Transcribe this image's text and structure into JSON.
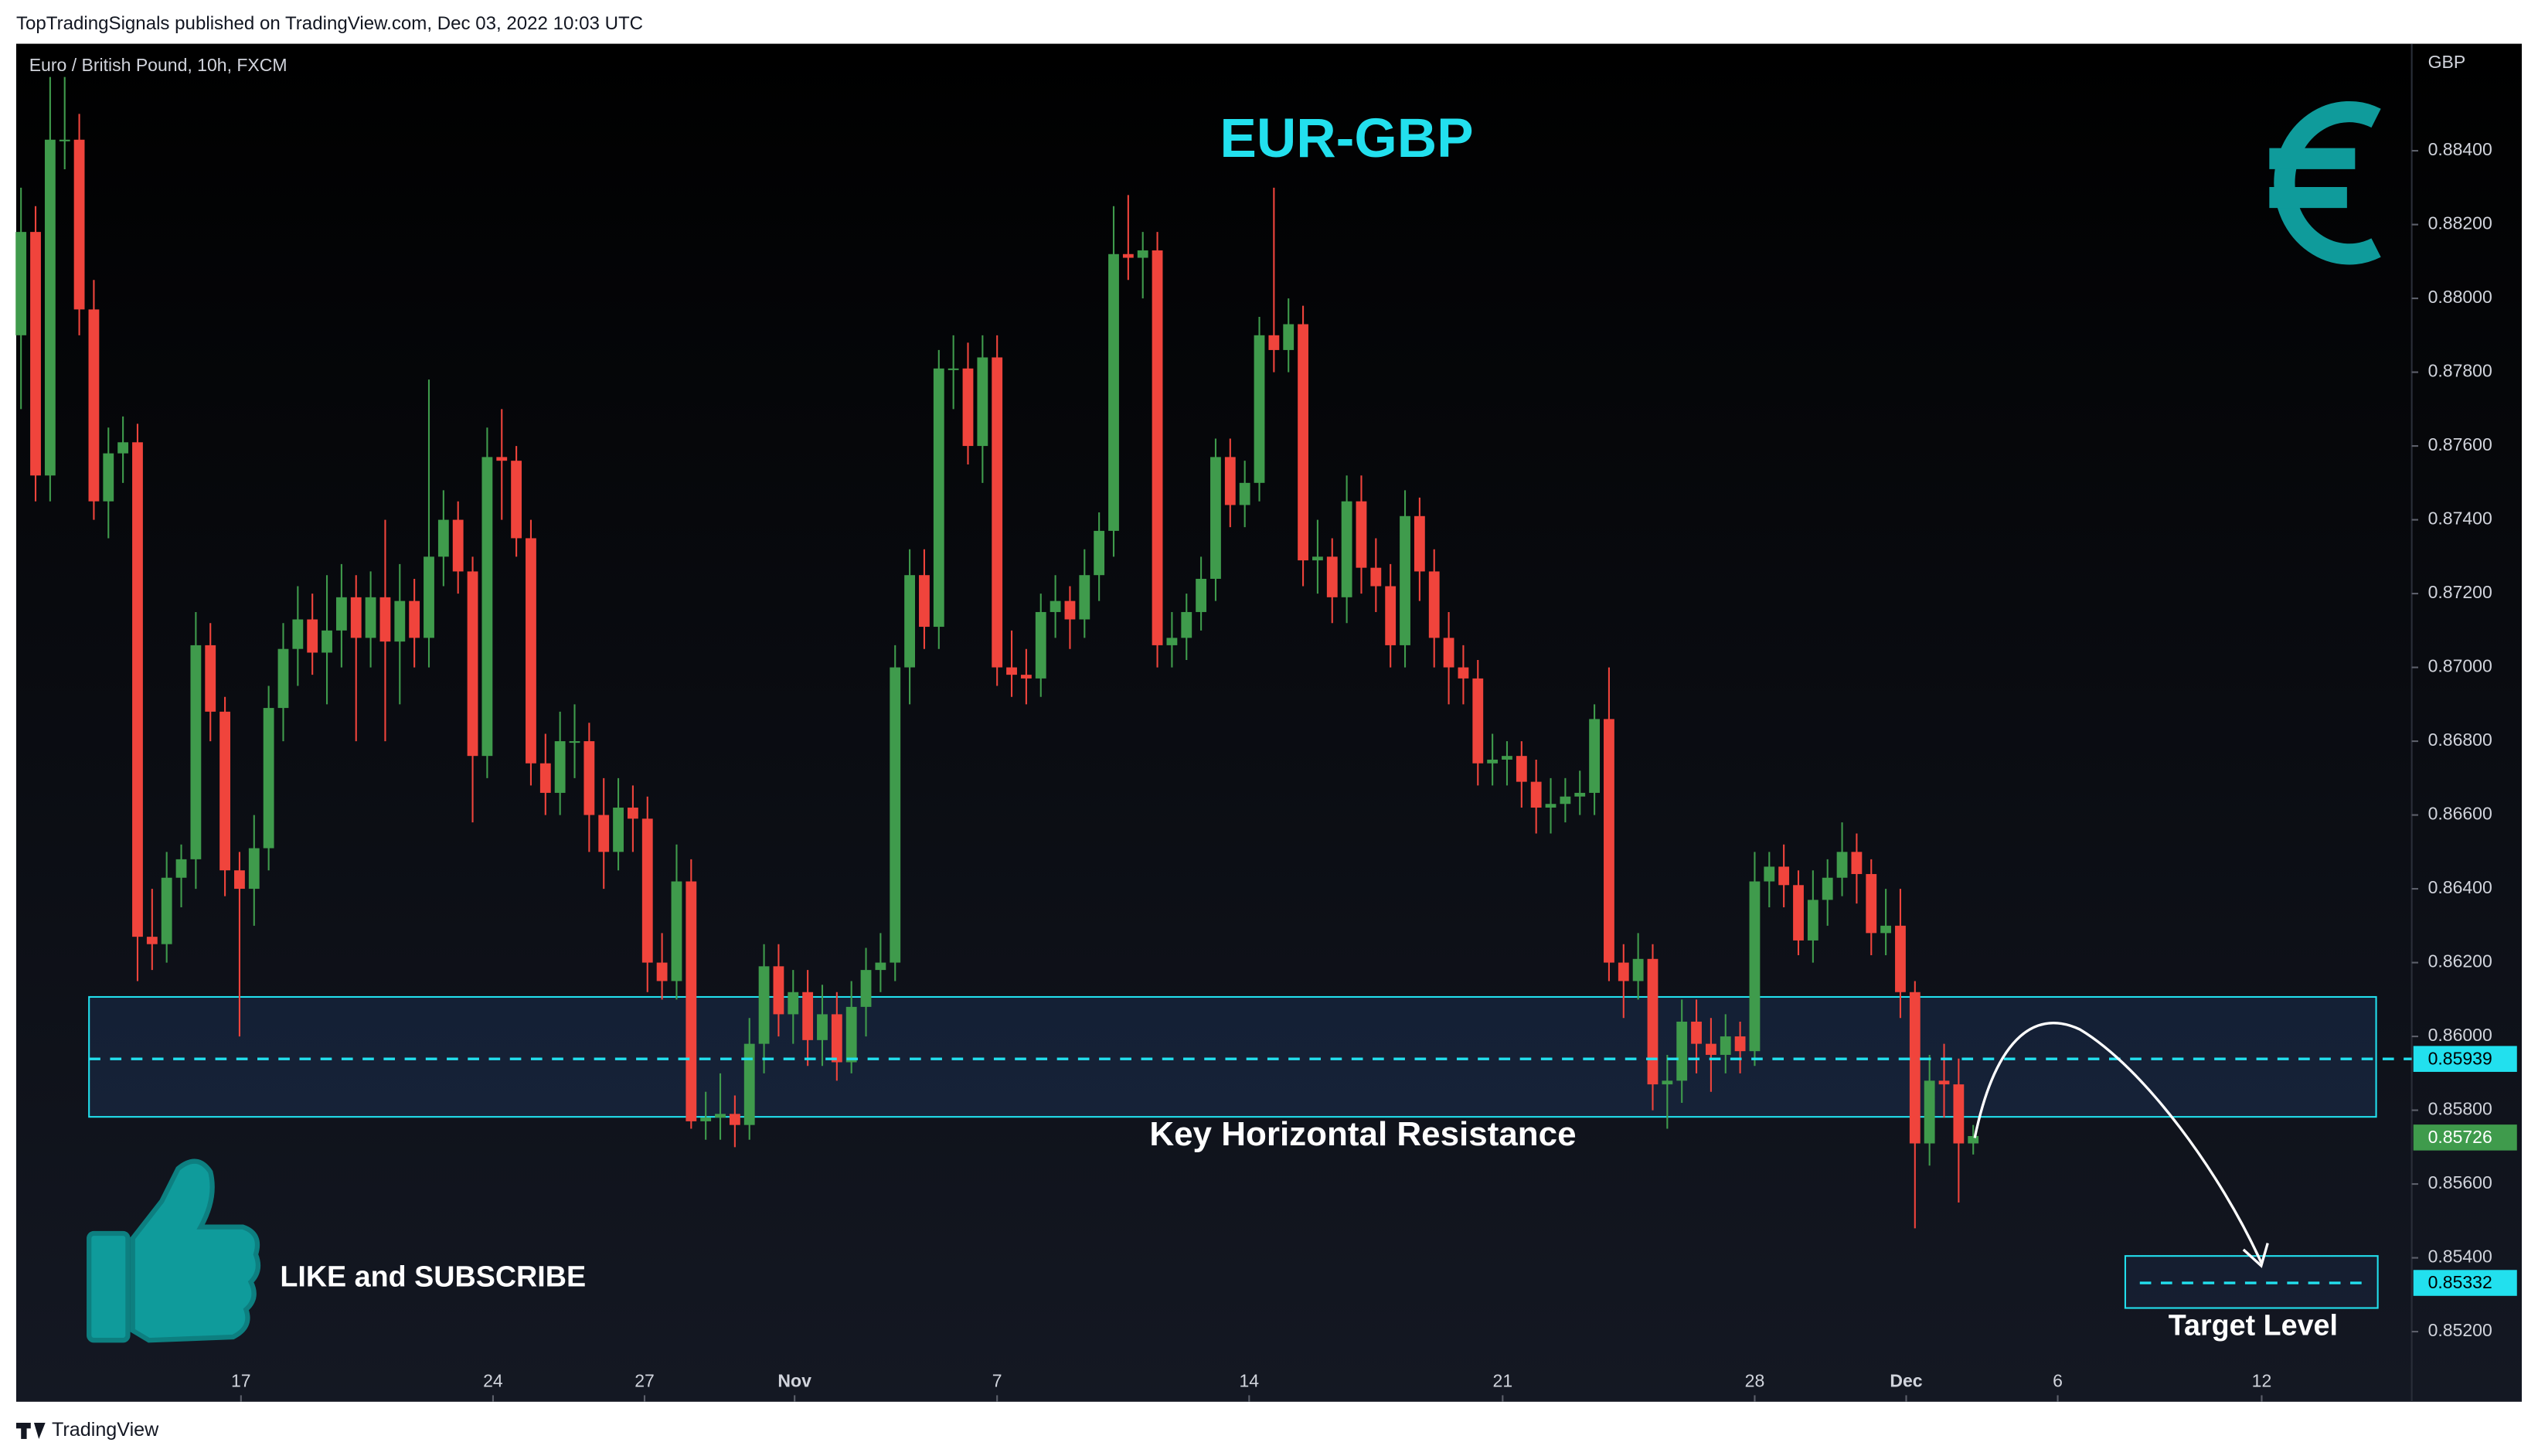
{
  "header": "TopTradingSignals published on TradingView.com, Dec 03, 2022 10:03 UTC",
  "footer": "TradingView",
  "chart_data": {
    "type": "candlestick",
    "title": "EUR-GBP",
    "subtitle": "Euro / British Pound, 10h, FXCM",
    "y_axis_label": "GBP",
    "up_color": "#3f9b4c",
    "down_color": "#f0443c",
    "accent_color": "#22e0ee",
    "ylim": [
      0.8501,
      0.8869
    ],
    "yticks": [
      {
        "value": 0.852,
        "label": "0.85200"
      },
      {
        "value": 0.854,
        "label": "0.85400"
      },
      {
        "value": 0.856,
        "label": "0.85600"
      },
      {
        "value": 0.858,
        "label": "0.85800"
      },
      {
        "value": 0.86,
        "label": "0.86000"
      },
      {
        "value": 0.862,
        "label": "0.86200"
      },
      {
        "value": 0.864,
        "label": "0.86400"
      },
      {
        "value": 0.866,
        "label": "0.86600"
      },
      {
        "value": 0.868,
        "label": "0.86800"
      },
      {
        "value": 0.87,
        "label": "0.87000"
      },
      {
        "value": 0.872,
        "label": "0.87200"
      },
      {
        "value": 0.874,
        "label": "0.87400"
      },
      {
        "value": 0.876,
        "label": "0.87600"
      },
      {
        "value": 0.878,
        "label": "0.87800"
      },
      {
        "value": 0.88,
        "label": "0.88000"
      },
      {
        "value": 0.882,
        "label": "0.88200"
      },
      {
        "value": 0.884,
        "label": "0.88400"
      }
    ],
    "xlim": [
      -0.33,
      164.1
    ],
    "xticks": [
      {
        "value": 15.1,
        "label": "17"
      },
      {
        "value": 32.4,
        "label": "24"
      },
      {
        "value": 42.8,
        "label": "27"
      },
      {
        "value": 53.1,
        "label": "Nov"
      },
      {
        "value": 67,
        "label": "7"
      },
      {
        "value": 84.3,
        "label": "14"
      },
      {
        "value": 101.7,
        "label": "21"
      },
      {
        "value": 119,
        "label": "28"
      },
      {
        "value": 129.4,
        "label": "Dec"
      },
      {
        "value": 139.8,
        "label": "6"
      },
      {
        "value": 153.8,
        "label": "12"
      }
    ],
    "resistance_zone": [
      0.86107,
      0.85782
    ],
    "resistance_level": 0.85939,
    "current_price": 0.85726,
    "target_zone": [
      0.85405,
      0.85264
    ],
    "target_level": 0.85332,
    "annotations": {
      "zone_label": "Key Horizontal Resistance",
      "cta": "LIKE and SUBSCRIBE",
      "target_label": "Target Level"
    },
    "ohlc": [
      [
        0.879,
        0.883,
        0.877,
        0.8818
      ],
      [
        0.8818,
        0.8825,
        0.8745,
        0.8752
      ],
      [
        0.8752,
        0.886,
        0.8745,
        0.8843
      ],
      [
        0.8843,
        0.886,
        0.8835,
        0.8843
      ],
      [
        0.8843,
        0.885,
        0.879,
        0.8797
      ],
      [
        0.8797,
        0.8805,
        0.874,
        0.8745
      ],
      [
        0.8745,
        0.8765,
        0.8735,
        0.8758
      ],
      [
        0.8758,
        0.8768,
        0.875,
        0.8761
      ],
      [
        0.8761,
        0.8766,
        0.8615,
        0.8627
      ],
      [
        0.8627,
        0.864,
        0.8618,
        0.8625
      ],
      [
        0.8625,
        0.865,
        0.862,
        0.8643
      ],
      [
        0.8643,
        0.8652,
        0.8635,
        0.8648
      ],
      [
        0.8648,
        0.8715,
        0.864,
        0.8706
      ],
      [
        0.8706,
        0.8712,
        0.868,
        0.8688
      ],
      [
        0.8688,
        0.8692,
        0.8638,
        0.8645
      ],
      [
        0.8645,
        0.865,
        0.86,
        0.864
      ],
      [
        0.864,
        0.866,
        0.863,
        0.8651
      ],
      [
        0.8651,
        0.8695,
        0.8645,
        0.8689
      ],
      [
        0.8689,
        0.8712,
        0.868,
        0.8705
      ],
      [
        0.8705,
        0.8722,
        0.8695,
        0.8713
      ],
      [
        0.8713,
        0.872,
        0.8698,
        0.8704
      ],
      [
        0.8704,
        0.8725,
        0.869,
        0.871
      ],
      [
        0.871,
        0.8728,
        0.87,
        0.8719
      ],
      [
        0.8719,
        0.8725,
        0.868,
        0.8708
      ],
      [
        0.8708,
        0.8726,
        0.87,
        0.8719
      ],
      [
        0.8719,
        0.874,
        0.868,
        0.8707
      ],
      [
        0.8707,
        0.8728,
        0.869,
        0.8718
      ],
      [
        0.8718,
        0.8724,
        0.87,
        0.8708
      ],
      [
        0.8708,
        0.8778,
        0.87,
        0.873
      ],
      [
        0.873,
        0.8748,
        0.8722,
        0.874
      ],
      [
        0.874,
        0.8745,
        0.872,
        0.8726
      ],
      [
        0.8726,
        0.873,
        0.8658,
        0.8676
      ],
      [
        0.8676,
        0.8765,
        0.867,
        0.8757
      ],
      [
        0.8757,
        0.877,
        0.874,
        0.8756
      ],
      [
        0.8756,
        0.876,
        0.873,
        0.8735
      ],
      [
        0.8735,
        0.874,
        0.8668,
        0.8674
      ],
      [
        0.8674,
        0.8682,
        0.866,
        0.8666
      ],
      [
        0.8666,
        0.8688,
        0.866,
        0.868
      ],
      [
        0.868,
        0.869,
        0.867,
        0.868
      ],
      [
        0.868,
        0.8685,
        0.865,
        0.866
      ],
      [
        0.866,
        0.867,
        0.864,
        0.865
      ],
      [
        0.865,
        0.867,
        0.8645,
        0.8662
      ],
      [
        0.8662,
        0.8668,
        0.865,
        0.8659
      ],
      [
        0.8659,
        0.8665,
        0.8612,
        0.862
      ],
      [
        0.862,
        0.8628,
        0.861,
        0.8615
      ],
      [
        0.8615,
        0.8652,
        0.861,
        0.8642
      ],
      [
        0.8642,
        0.8648,
        0.8575,
        0.8577
      ],
      [
        0.8577,
        0.8585,
        0.8572,
        0.8578
      ],
      [
        0.8578,
        0.859,
        0.8572,
        0.8579
      ],
      [
        0.8579,
        0.8584,
        0.857,
        0.8576
      ],
      [
        0.8576,
        0.8605,
        0.8572,
        0.8598
      ],
      [
        0.8598,
        0.8625,
        0.859,
        0.8619
      ],
      [
        0.8619,
        0.8625,
        0.86,
        0.8606
      ],
      [
        0.8606,
        0.8618,
        0.8598,
        0.8612
      ],
      [
        0.8612,
        0.8618,
        0.8592,
        0.8599
      ],
      [
        0.8599,
        0.8614,
        0.8592,
        0.8606
      ],
      [
        0.8606,
        0.8612,
        0.8588,
        0.8593
      ],
      [
        0.8593,
        0.8615,
        0.859,
        0.8608
      ],
      [
        0.8608,
        0.8624,
        0.86,
        0.8618
      ],
      [
        0.8618,
        0.8628,
        0.8612,
        0.862
      ],
      [
        0.862,
        0.8706,
        0.8615,
        0.87
      ],
      [
        0.87,
        0.8732,
        0.869,
        0.8725
      ],
      [
        0.8725,
        0.8732,
        0.8705,
        0.8711
      ],
      [
        0.8711,
        0.8786,
        0.8705,
        0.8781
      ],
      [
        0.8781,
        0.879,
        0.877,
        0.8781
      ],
      [
        0.8781,
        0.8788,
        0.8755,
        0.876
      ],
      [
        0.876,
        0.879,
        0.875,
        0.8784
      ],
      [
        0.8784,
        0.879,
        0.8695,
        0.87
      ],
      [
        0.87,
        0.871,
        0.8692,
        0.8698
      ],
      [
        0.8698,
        0.8705,
        0.869,
        0.8697
      ],
      [
        0.8697,
        0.872,
        0.8692,
        0.8715
      ],
      [
        0.8715,
        0.8725,
        0.8708,
        0.8718
      ],
      [
        0.8718,
        0.8722,
        0.8705,
        0.8713
      ],
      [
        0.8713,
        0.8732,
        0.8708,
        0.8725
      ],
      [
        0.8725,
        0.8742,
        0.8718,
        0.8737
      ],
      [
        0.8737,
        0.8825,
        0.873,
        0.8812
      ],
      [
        0.8812,
        0.8828,
        0.8805,
        0.8811
      ],
      [
        0.8811,
        0.8818,
        0.88,
        0.8813
      ],
      [
        0.8813,
        0.8818,
        0.87,
        0.8706
      ],
      [
        0.8706,
        0.8715,
        0.87,
        0.8708
      ],
      [
        0.8708,
        0.872,
        0.8702,
        0.8715
      ],
      [
        0.8715,
        0.873,
        0.871,
        0.8724
      ],
      [
        0.8724,
        0.8762,
        0.8718,
        0.8757
      ],
      [
        0.8757,
        0.8762,
        0.8738,
        0.8744
      ],
      [
        0.8744,
        0.8756,
        0.8738,
        0.875
      ],
      [
        0.875,
        0.8795,
        0.8745,
        0.879
      ],
      [
        0.879,
        0.883,
        0.878,
        0.8786
      ],
      [
        0.8786,
        0.88,
        0.878,
        0.8793
      ],
      [
        0.8793,
        0.8798,
        0.8722,
        0.8729
      ],
      [
        0.8729,
        0.874,
        0.872,
        0.873
      ],
      [
        0.873,
        0.8735,
        0.8712,
        0.8719
      ],
      [
        0.8719,
        0.8752,
        0.8712,
        0.8745
      ],
      [
        0.8745,
        0.8752,
        0.872,
        0.8727
      ],
      [
        0.8727,
        0.8735,
        0.8715,
        0.8722
      ],
      [
        0.8722,
        0.8728,
        0.87,
        0.8706
      ],
      [
        0.8706,
        0.8748,
        0.87,
        0.8741
      ],
      [
        0.8741,
        0.8746,
        0.8718,
        0.8726
      ],
      [
        0.8726,
        0.8732,
        0.87,
        0.8708
      ],
      [
        0.8708,
        0.8715,
        0.869,
        0.87
      ],
      [
        0.87,
        0.8706,
        0.869,
        0.8697
      ],
      [
        0.8697,
        0.8702,
        0.8668,
        0.8674
      ],
      [
        0.8674,
        0.8682,
        0.8668,
        0.8675
      ],
      [
        0.8675,
        0.868,
        0.8668,
        0.8676
      ],
      [
        0.8676,
        0.868,
        0.8662,
        0.8669
      ],
      [
        0.8669,
        0.8675,
        0.8655,
        0.8662
      ],
      [
        0.8662,
        0.867,
        0.8655,
        0.8663
      ],
      [
        0.8663,
        0.867,
        0.8658,
        0.8665
      ],
      [
        0.8665,
        0.8672,
        0.866,
        0.8666
      ],
      [
        0.8666,
        0.869,
        0.866,
        0.8686
      ],
      [
        0.8686,
        0.87,
        0.8615,
        0.862
      ],
      [
        0.862,
        0.8625,
        0.8605,
        0.8615
      ],
      [
        0.8615,
        0.8628,
        0.861,
        0.8621
      ],
      [
        0.8621,
        0.8625,
        0.858,
        0.8587
      ],
      [
        0.8587,
        0.8595,
        0.8575,
        0.8588
      ],
      [
        0.8588,
        0.861,
        0.8582,
        0.8604
      ],
      [
        0.8604,
        0.861,
        0.859,
        0.8598
      ],
      [
        0.8598,
        0.8605,
        0.8585,
        0.8595
      ],
      [
        0.8595,
        0.8606,
        0.859,
        0.86
      ],
      [
        0.86,
        0.8604,
        0.859,
        0.8596
      ],
      [
        0.8596,
        0.865,
        0.8592,
        0.8642
      ],
      [
        0.8642,
        0.865,
        0.8635,
        0.8646
      ],
      [
        0.8646,
        0.8652,
        0.8635,
        0.8641
      ],
      [
        0.8641,
        0.8645,
        0.8622,
        0.8626
      ],
      [
        0.8626,
        0.8645,
        0.862,
        0.8637
      ],
      [
        0.8637,
        0.8648,
        0.863,
        0.8643
      ],
      [
        0.8643,
        0.8658,
        0.8638,
        0.865
      ],
      [
        0.865,
        0.8655,
        0.8636,
        0.8644
      ],
      [
        0.8644,
        0.8648,
        0.8622,
        0.8628
      ],
      [
        0.8628,
        0.864,
        0.8622,
        0.863
      ],
      [
        0.863,
        0.864,
        0.8605,
        0.8612
      ],
      [
        0.8612,
        0.8615,
        0.8548,
        0.8571
      ],
      [
        0.8571,
        0.8595,
        0.8565,
        0.8588
      ],
      [
        0.8588,
        0.8598,
        0.8578,
        0.8587
      ],
      [
        0.8587,
        0.8594,
        0.8555,
        0.8571
      ],
      [
        0.8571,
        0.8576,
        0.8568,
        0.8573
      ]
    ]
  }
}
